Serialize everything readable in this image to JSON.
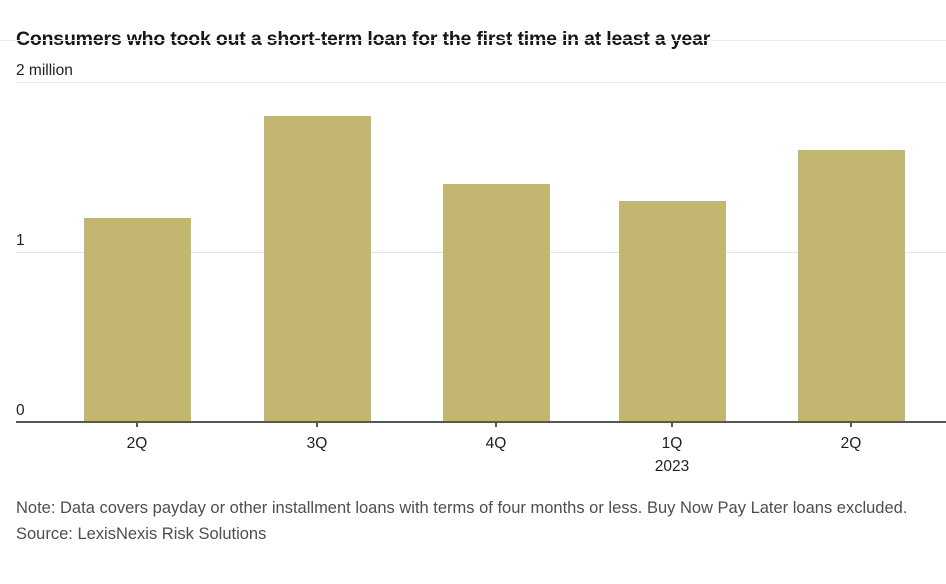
{
  "header": {
    "title": "Consumers who took out a short-term loan for the first time in at least a year"
  },
  "footer": {
    "note": "Note: Data covers payday or other installment loans with terms of four months or less. Buy Now Pay Later loans excluded.",
    "source": "Source: LexisNexis Risk Solutions"
  },
  "chart_data": {
    "type": "bar",
    "title": "Consumers who took out a short-term loan for the first time in at least a year",
    "categories": [
      "2Q",
      "3Q",
      "4Q",
      "1Q",
      "2Q"
    ],
    "values": [
      1.2,
      1.8,
      1.4,
      1.3,
      1.6
    ],
    "unit": "million consumers",
    "year_row": {
      "index": 3,
      "label": "2023"
    },
    "yticks": [
      {
        "value": 2,
        "label": "2 million"
      },
      {
        "value": 1,
        "label": "1"
      },
      {
        "value": 0,
        "label": "0"
      }
    ],
    "ylim": [
      0,
      2
    ],
    "grid": true,
    "legend": "none",
    "colors": {
      "bar": "#c2b671",
      "axis": "#56575b",
      "grid": "#e4e4e4",
      "title_text": "#171717",
      "axis_text": "#1f1f1f",
      "note_text": "#4e4e4e"
    }
  }
}
